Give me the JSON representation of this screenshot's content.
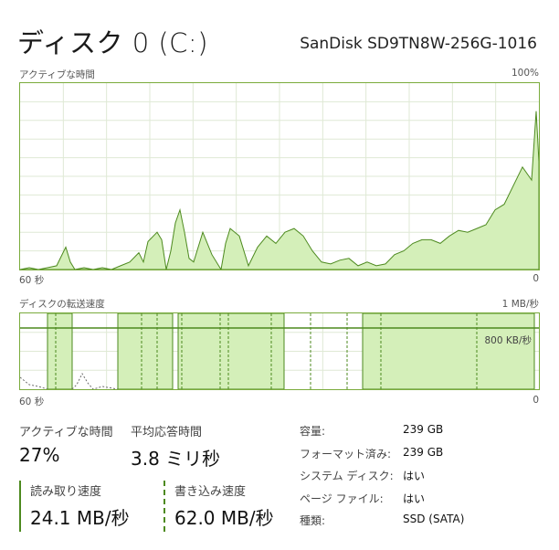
{
  "header": {
    "title": "ディスク 0 (C:)",
    "model": "SanDisk SD9TN8W-256G-1016"
  },
  "active_time_graph": {
    "label": "アクティブな時間",
    "max_label": "100%",
    "left_time_label": "60 秒",
    "right_time_label": "0"
  },
  "transfer_graph": {
    "label": "ディスクの転送速度",
    "max_label": "1 MB/秒",
    "ref_label": "800 KB/秒",
    "left_time_label": "60 秒",
    "right_time_label": "0"
  },
  "stats": {
    "active_time_label": "アクティブな時間",
    "active_time_value": "27%",
    "avg_response_label": "平均応答時間",
    "avg_response_value": "3.8 ミリ秒",
    "read_speed_label": "読み取り速度",
    "read_speed_value": "24.1 MB/秒",
    "write_speed_label": "書き込み速度",
    "write_speed_value": "62.0 MB/秒"
  },
  "properties": [
    {
      "label": "容量:",
      "value": "239 GB"
    },
    {
      "label": "フォーマット済み:",
      "value": "239 GB"
    },
    {
      "label": "システム ディスク:",
      "value": "はい"
    },
    {
      "label": "ページ ファイル:",
      "value": "はい"
    },
    {
      "label": "種類:",
      "value": "SSD (SATA)"
    }
  ],
  "colors": {
    "accent": "#4d8a1f",
    "fill": "#d4efb9",
    "border": "#7aab3c",
    "grid": "#dfe9d5"
  }
}
